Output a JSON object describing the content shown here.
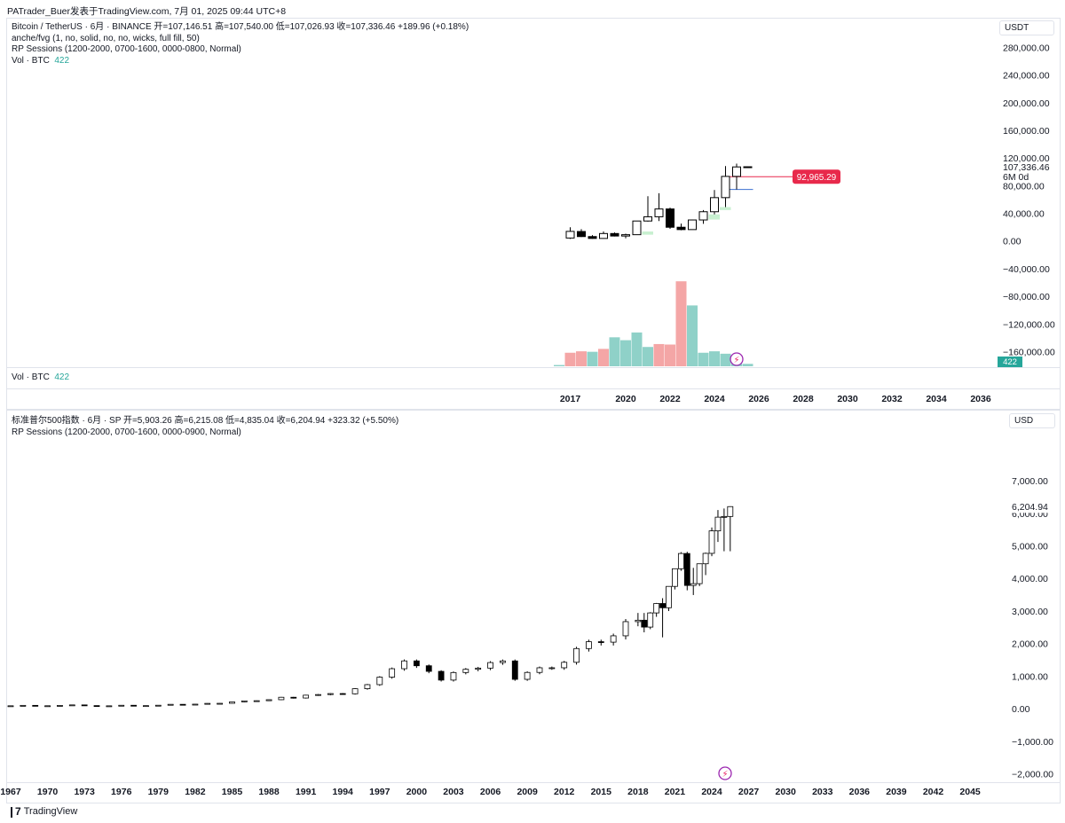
{
  "header": {
    "text": "PATrader_Buer发表于TradingView.com,  7月 01, 2025 09:44 UTC+8"
  },
  "btc": {
    "legend1": "Bitcoin / TetherUS · 6月 · BINANCE  开=107,146.51  高=107,540.00  低=107,026.93  收=107,336.46  +189.96 (+0.18%)",
    "legend2": "anche/fvg (1, no, solid, no, no, wicks, full fill, 50)",
    "legend3": "RP Sessions (1200-2000, 0700-1600, 0000-0800, Normal)",
    "vol_label": "Vol · BTC",
    "vol_value": "422",
    "currency": "USDT",
    "price_label": "107,336.46",
    "countdown": "6M 0d",
    "target_label": "92,965.29",
    "vol_badge": "422",
    "colors": {
      "up_fill": "#ffffff",
      "down_fill": "#000000",
      "vol_up": "#8fd1c8",
      "vol_down": "#f4a6a6",
      "target": "#e8294b",
      "fvg": "#c8f0d0",
      "line": "#3c6fd1"
    }
  },
  "spx": {
    "legend1": "标准普尔500指数 · 6月 · SP  开=5,903.26  高=6,215.08  低=4,835.04  收=6,204.94  +323.32 (+5.50%)",
    "legend2": "RP Sessions (1200-2000, 0700-1600, 0000-0900, Normal)",
    "currency": "USD",
    "price_label": "6,204.94"
  },
  "tradingview": {
    "label": "TradingView"
  },
  "chart_data": [
    {
      "type": "candlestick",
      "title": "Bitcoin / TetherUS · 6月 · BINANCE",
      "ylim": [
        -185000,
        310000
      ],
      "y_ticks": [
        "280,000.00",
        "240,000.00",
        "200,000.00",
        "160,000.00",
        "120,000.00",
        "80,000.00",
        "40,000.00",
        "0.00",
        "−40,000.00",
        "−80,000.00",
        "−120,000.00",
        "−160,000.00"
      ],
      "y_tick_values": [
        280000,
        240000,
        200000,
        160000,
        120000,
        80000,
        40000,
        0,
        -40000,
        -80000,
        -120000,
        -160000
      ],
      "x_ticks": [
        "2017",
        "2020",
        "2022",
        "2024",
        "2026",
        "2028",
        "2030",
        "2032",
        "2034",
        "2036"
      ],
      "x_tick_values": [
        2017.5,
        2020,
        2022,
        2024,
        2026,
        2028,
        2030,
        2032,
        2034,
        2036
      ],
      "candles": [
        {
          "t": 2017.5,
          "o": 4300,
          "h": 19800,
          "l": 3000,
          "c": 13900
        },
        {
          "t": 2018.0,
          "o": 13700,
          "h": 17200,
          "l": 5800,
          "c": 6400
        },
        {
          "t": 2018.5,
          "o": 6400,
          "h": 8500,
          "l": 3200,
          "c": 3700
        },
        {
          "t": 2019.0,
          "o": 3700,
          "h": 13800,
          "l": 3400,
          "c": 10800
        },
        {
          "t": 2019.5,
          "o": 10800,
          "h": 12300,
          "l": 6500,
          "c": 7200
        },
        {
          "t": 2020.0,
          "o": 7200,
          "h": 10500,
          "l": 3800,
          "c": 9100
        },
        {
          "t": 2020.5,
          "o": 9100,
          "h": 29000,
          "l": 8900,
          "c": 28900
        },
        {
          "t": 2021.0,
          "o": 28900,
          "h": 64800,
          "l": 28100,
          "c": 35000
        },
        {
          "t": 2021.5,
          "o": 35000,
          "h": 69000,
          "l": 28800,
          "c": 46300
        },
        {
          "t": 2022.0,
          "o": 46300,
          "h": 48200,
          "l": 17600,
          "c": 19900
        },
        {
          "t": 2022.5,
          "o": 19900,
          "h": 25200,
          "l": 15500,
          "c": 16500
        },
        {
          "t": 2023.0,
          "o": 16500,
          "h": 31000,
          "l": 16500,
          "c": 30400
        },
        {
          "t": 2023.5,
          "o": 30400,
          "h": 44700,
          "l": 24900,
          "c": 42300
        },
        {
          "t": 2024.0,
          "o": 42300,
          "h": 73800,
          "l": 38500,
          "c": 62700
        },
        {
          "t": 2024.5,
          "o": 62700,
          "h": 108300,
          "l": 49000,
          "c": 93400
        },
        {
          "t": 2025.0,
          "o": 93400,
          "h": 111900,
          "l": 74500,
          "c": 107100
        },
        {
          "t": 2025.5,
          "o": 107150,
          "h": 107540,
          "l": 107027,
          "c": 107336
        }
      ],
      "fvg_zones": [
        {
          "t0": 2020.5,
          "t1": 2021.0,
          "low": 9100,
          "high": 13700
        },
        {
          "t0": 2023.5,
          "t1": 2024.0,
          "low": 31000,
          "high": 38500
        },
        {
          "t0": 2024.0,
          "t1": 2024.5,
          "low": 44700,
          "high": 49000
        }
      ],
      "target_line": {
        "value": 92965.29,
        "t_start": 2024.5
      },
      "volume": {
        "ylim": [
          0,
          90000
        ],
        "bars": [
          {
            "t": 2017.0,
            "v": 1300,
            "dir": "up"
          },
          {
            "t": 2017.5,
            "v": 14000,
            "dir": "down"
          },
          {
            "t": 2018.0,
            "v": 15500,
            "dir": "down"
          },
          {
            "t": 2018.5,
            "v": 15000,
            "dir": "up"
          },
          {
            "t": 2019.0,
            "v": 18000,
            "dir": "down"
          },
          {
            "t": 2019.5,
            "v": 30000,
            "dir": "up"
          },
          {
            "t": 2020.0,
            "v": 27000,
            "dir": "up"
          },
          {
            "t": 2020.5,
            "v": 35000,
            "dir": "up"
          },
          {
            "t": 2021.0,
            "v": 20000,
            "dir": "up"
          },
          {
            "t": 2021.5,
            "v": 23000,
            "dir": "down"
          },
          {
            "t": 2022.0,
            "v": 22500,
            "dir": "down"
          },
          {
            "t": 2022.5,
            "v": 88000,
            "dir": "down"
          },
          {
            "t": 2023.0,
            "v": 63000,
            "dir": "up"
          },
          {
            "t": 2023.5,
            "v": 14000,
            "dir": "up"
          },
          {
            "t": 2024.0,
            "v": 15500,
            "dir": "up"
          },
          {
            "t": 2024.5,
            "v": 13000,
            "dir": "up"
          },
          {
            "t": 2025.0,
            "v": 11500,
            "dir": "up"
          },
          {
            "t": 2025.5,
            "v": 2500,
            "dir": "up"
          }
        ]
      }
    },
    {
      "type": "candlestick",
      "title": "标准普尔500指数 · 6月 · SP",
      "ylim": [
        -2200,
        7600
      ],
      "y_ticks": [
        "7,000.00",
        "6,000.00",
        "5,000.00",
        "4,000.00",
        "3,000.00",
        "2,000.00",
        "1,000.00",
        "0.00",
        "−1,000.00",
        "−2,000.00"
      ],
      "y_tick_values": [
        7000,
        6000,
        5000,
        4000,
        3000,
        2000,
        1000,
        0,
        -1000,
        -2000
      ],
      "x_ticks": [
        "1967",
        "1970",
        "1973",
        "1976",
        "1979",
        "1982",
        "1985",
        "1988",
        "1991",
        "1994",
        "1997",
        "2000",
        "2003",
        "2006",
        "2009",
        "2012",
        "2015",
        "2018",
        "2021",
        "2024",
        "2027",
        "2030",
        "2033",
        "2036",
        "2039",
        "2042",
        "2045"
      ],
      "x_tick_values": [
        1967,
        1970,
        1973,
        1976,
        1979,
        1982,
        1985,
        1988,
        1991,
        1994,
        1997,
        2000,
        2003,
        2006,
        2009,
        2012,
        2015,
        2018,
        2021,
        2024,
        2027,
        2030,
        2033,
        2036,
        2039,
        2042,
        2045
      ],
      "closes": [
        {
          "t": 1967.0,
          "c": 91
        },
        {
          "t": 1968.0,
          "c": 104
        },
        {
          "t": 1969.0,
          "c": 92
        },
        {
          "t": 1970.0,
          "c": 92
        },
        {
          "t": 1971.0,
          "c": 102
        },
        {
          "t": 1972.0,
          "c": 118
        },
        {
          "t": 1973.0,
          "c": 97
        },
        {
          "t": 1974.0,
          "c": 69
        },
        {
          "t": 1975.0,
          "c": 90
        },
        {
          "t": 1976.0,
          "c": 107
        },
        {
          "t": 1977.0,
          "c": 95
        },
        {
          "t": 1978.0,
          "c": 96
        },
        {
          "t": 1979.0,
          "c": 108
        },
        {
          "t": 1980.0,
          "c": 136
        },
        {
          "t": 1981.0,
          "c": 122
        },
        {
          "t": 1982.0,
          "c": 141
        },
        {
          "t": 1983.0,
          "c": 165
        },
        {
          "t": 1984.0,
          "c": 167
        },
        {
          "t": 1985.0,
          "c": 211
        },
        {
          "t": 1986.0,
          "c": 242
        },
        {
          "t": 1987.0,
          "c": 247
        },
        {
          "t": 1988.0,
          "c": 278
        },
        {
          "t": 1989.0,
          "c": 353
        },
        {
          "t": 1990.0,
          "c": 330
        },
        {
          "t": 1991.0,
          "c": 417
        },
        {
          "t": 1992.0,
          "c": 436
        },
        {
          "t": 1993.0,
          "c": 466
        },
        {
          "t": 1994.0,
          "c": 459
        },
        {
          "t": 1995.0,
          "c": 615
        },
        {
          "t": 1996.0,
          "c": 740
        },
        {
          "t": 1997.0,
          "c": 970
        },
        {
          "t": 1998.0,
          "c": 1229
        },
        {
          "t": 1999.0,
          "c": 1469
        },
        {
          "t": 2000.0,
          "c": 1320
        },
        {
          "t": 2001.0,
          "c": 1148
        },
        {
          "t": 2002.0,
          "c": 880
        },
        {
          "t": 2003.0,
          "c": 1112
        },
        {
          "t": 2004.0,
          "c": 1212
        },
        {
          "t": 2005.0,
          "c": 1248
        },
        {
          "t": 2006.0,
          "c": 1418
        },
        {
          "t": 2007.0,
          "c": 1468
        },
        {
          "t": 2008.0,
          "c": 903
        },
        {
          "t": 2009.0,
          "c": 1115
        },
        {
          "t": 2010.0,
          "c": 1258
        },
        {
          "t": 2011.0,
          "c": 1258
        },
        {
          "t": 2012.0,
          "c": 1426
        },
        {
          "t": 2013.0,
          "c": 1848
        },
        {
          "t": 2014.0,
          "c": 2059
        },
        {
          "t": 2015.0,
          "c": 2044
        },
        {
          "t": 2016.0,
          "c": 2239
        },
        {
          "t": 2017.0,
          "c": 2674
        },
        {
          "t": 2018.0,
          "c": 2507
        },
        {
          "t": 2019.0,
          "c": 3231
        },
        {
          "t": 2020.0,
          "c": 3756
        },
        {
          "t": 2021.0,
          "c": 4766
        },
        {
          "t": 2022.0,
          "c": 3840
        },
        {
          "t": 2023.0,
          "c": 4770
        },
        {
          "t": 2024.0,
          "c": 5881
        },
        {
          "t": 2025.0,
          "c": 6205
        }
      ],
      "candles": [
        {
          "t": 2018.0,
          "o": 2674,
          "h": 2941,
          "l": 2532,
          "c": 2718
        },
        {
          "t": 2018.5,
          "o": 2718,
          "h": 2940,
          "l": 2346,
          "c": 2507
        },
        {
          "t": 2019.0,
          "o": 2507,
          "h": 2965,
          "l": 2443,
          "c": 2942
        },
        {
          "t": 2019.5,
          "o": 2942,
          "h": 3248,
          "l": 2822,
          "c": 3231
        },
        {
          "t": 2020.0,
          "o": 3231,
          "h": 3394,
          "l": 2192,
          "c": 3100
        },
        {
          "t": 2020.5,
          "o": 3100,
          "h": 3760,
          "l": 3000,
          "c": 3756
        },
        {
          "t": 2021.0,
          "o": 3756,
          "h": 4300,
          "l": 3662,
          "c": 4298
        },
        {
          "t": 2021.5,
          "o": 4298,
          "h": 4808,
          "l": 4234,
          "c": 4766
        },
        {
          "t": 2022.0,
          "o": 4766,
          "h": 4819,
          "l": 3636,
          "c": 3785
        },
        {
          "t": 2022.5,
          "o": 3785,
          "h": 4325,
          "l": 3491,
          "c": 3840
        },
        {
          "t": 2023.0,
          "o": 3840,
          "h": 4450,
          "l": 3764,
          "c": 4450
        },
        {
          "t": 2023.5,
          "o": 4450,
          "h": 4793,
          "l": 4103,
          "c": 4770
        },
        {
          "t": 2024.0,
          "o": 4770,
          "h": 5565,
          "l": 4683,
          "c": 5460
        },
        {
          "t": 2024.5,
          "o": 5460,
          "h": 6100,
          "l": 5120,
          "c": 5881
        },
        {
          "t": 2025.0,
          "o": 5881,
          "h": 6147,
          "l": 4835,
          "c": 5903
        },
        {
          "t": 2025.5,
          "o": 5903,
          "h": 6215,
          "l": 4835,
          "c": 6205
        }
      ]
    }
  ]
}
